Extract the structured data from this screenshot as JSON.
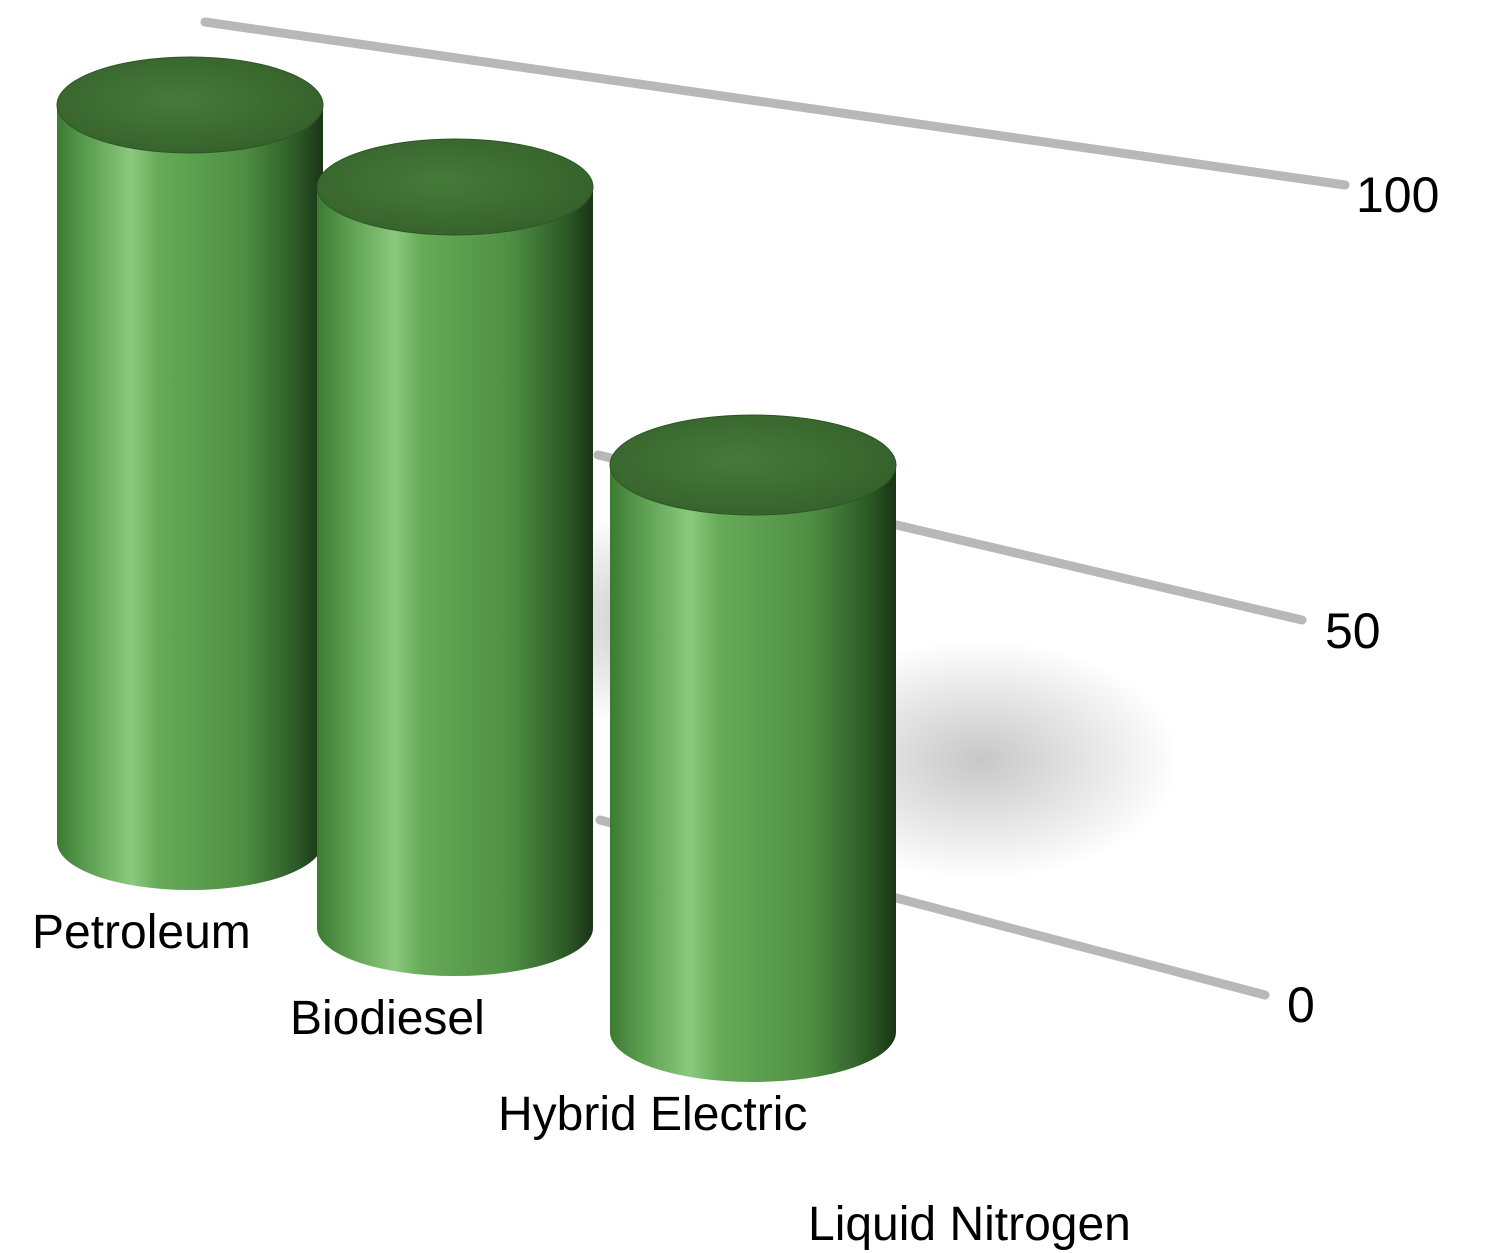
{
  "chart_data": {
    "type": "bar",
    "style": "3d-cylinder",
    "categories": [
      "Petroleum",
      "Biodiesel",
      "Hybrid Electric",
      "Liquid Nitrogen"
    ],
    "values": [
      100,
      95,
      70,
      0
    ],
    "ylim": [
      0,
      100
    ],
    "y_ticks": [
      "0",
      "50",
      "100"
    ],
    "y_tick_values": [
      0,
      50,
      100
    ],
    "grid": true,
    "bar_color": "#5fa853",
    "bar_top_color": "#3f6b34",
    "gridline_color": "#b8b8b8"
  }
}
